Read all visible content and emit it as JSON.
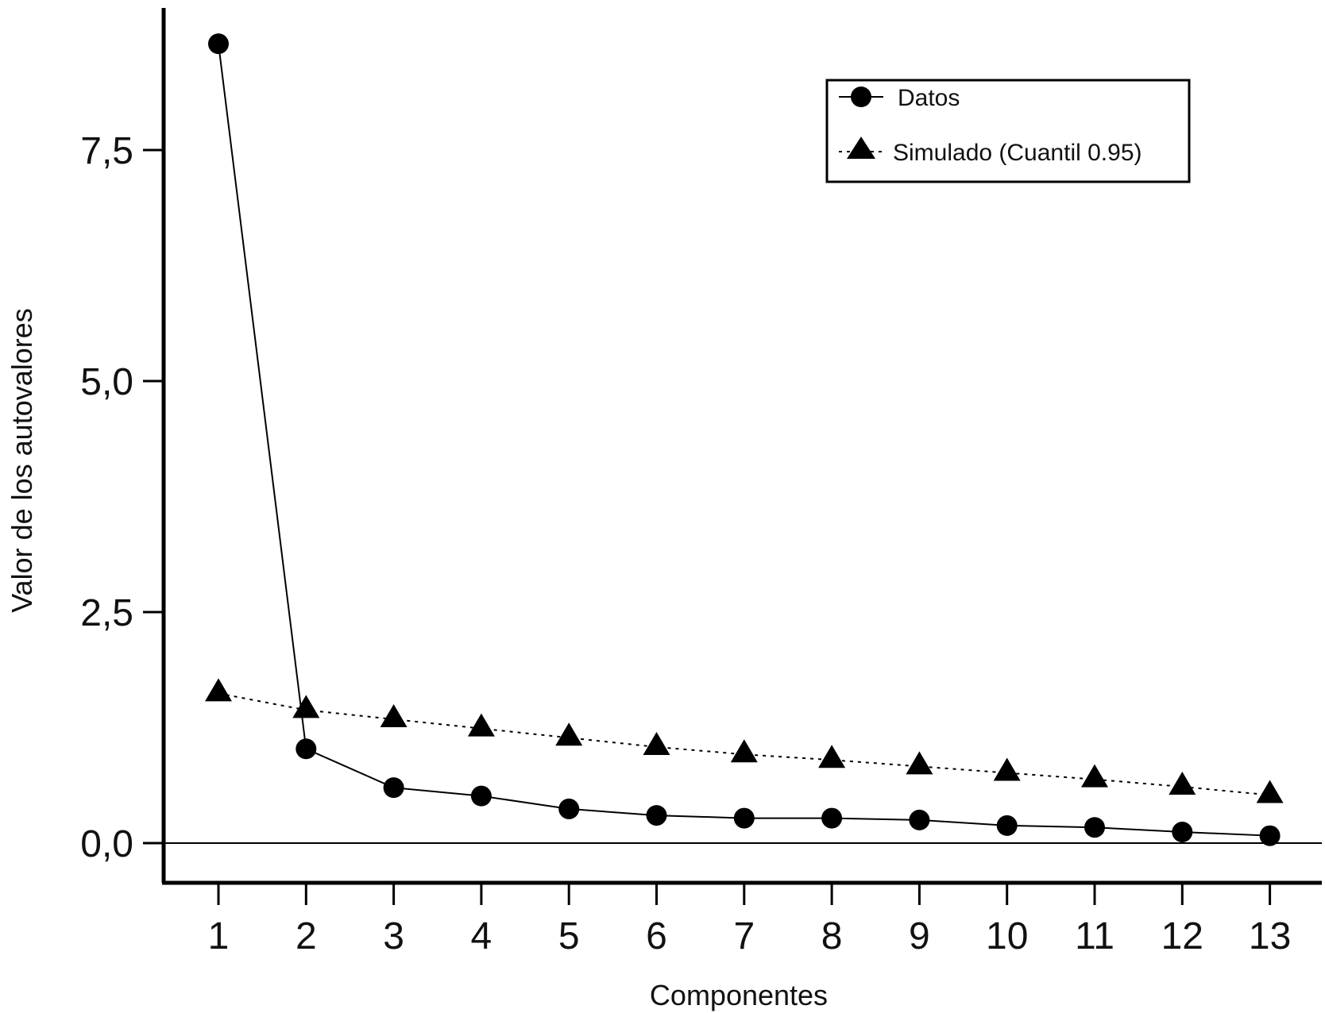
{
  "chart_data": {
    "type": "line",
    "title": "",
    "xlabel": "Componentes",
    "ylabel": "Valor de los autovalores",
    "categories": [
      "1",
      "2",
      "3",
      "4",
      "5",
      "6",
      "7",
      "8",
      "9",
      "10",
      "11",
      "12",
      "13"
    ],
    "ylim": [
      -0.45,
      9.0
    ],
    "yticks": [
      {
        "value": 0.0,
        "label": "0,0"
      },
      {
        "value": 2.5,
        "label": "2,5"
      },
      {
        "value": 5.0,
        "label": "5,0"
      },
      {
        "value": 7.5,
        "label": "7,5"
      }
    ],
    "series": [
      {
        "name": "Datos",
        "marker": "circle",
        "line": "solid",
        "values": [
          8.65,
          1.02,
          0.6,
          0.51,
          0.37,
          0.3,
          0.27,
          0.27,
          0.25,
          0.19,
          0.17,
          0.12,
          0.08
        ]
      },
      {
        "name": "Simulado (Cuantil 0.95)",
        "marker": "triangle",
        "line": "dotted",
        "values": [
          1.62,
          1.44,
          1.34,
          1.24,
          1.14,
          1.04,
          0.96,
          0.9,
          0.83,
          0.76,
          0.69,
          0.61,
          0.52
        ]
      }
    ],
    "legend_position": "top-right",
    "zero_line": true
  },
  "colors": {
    "ink": "#000000",
    "background": "#ffffff"
  }
}
